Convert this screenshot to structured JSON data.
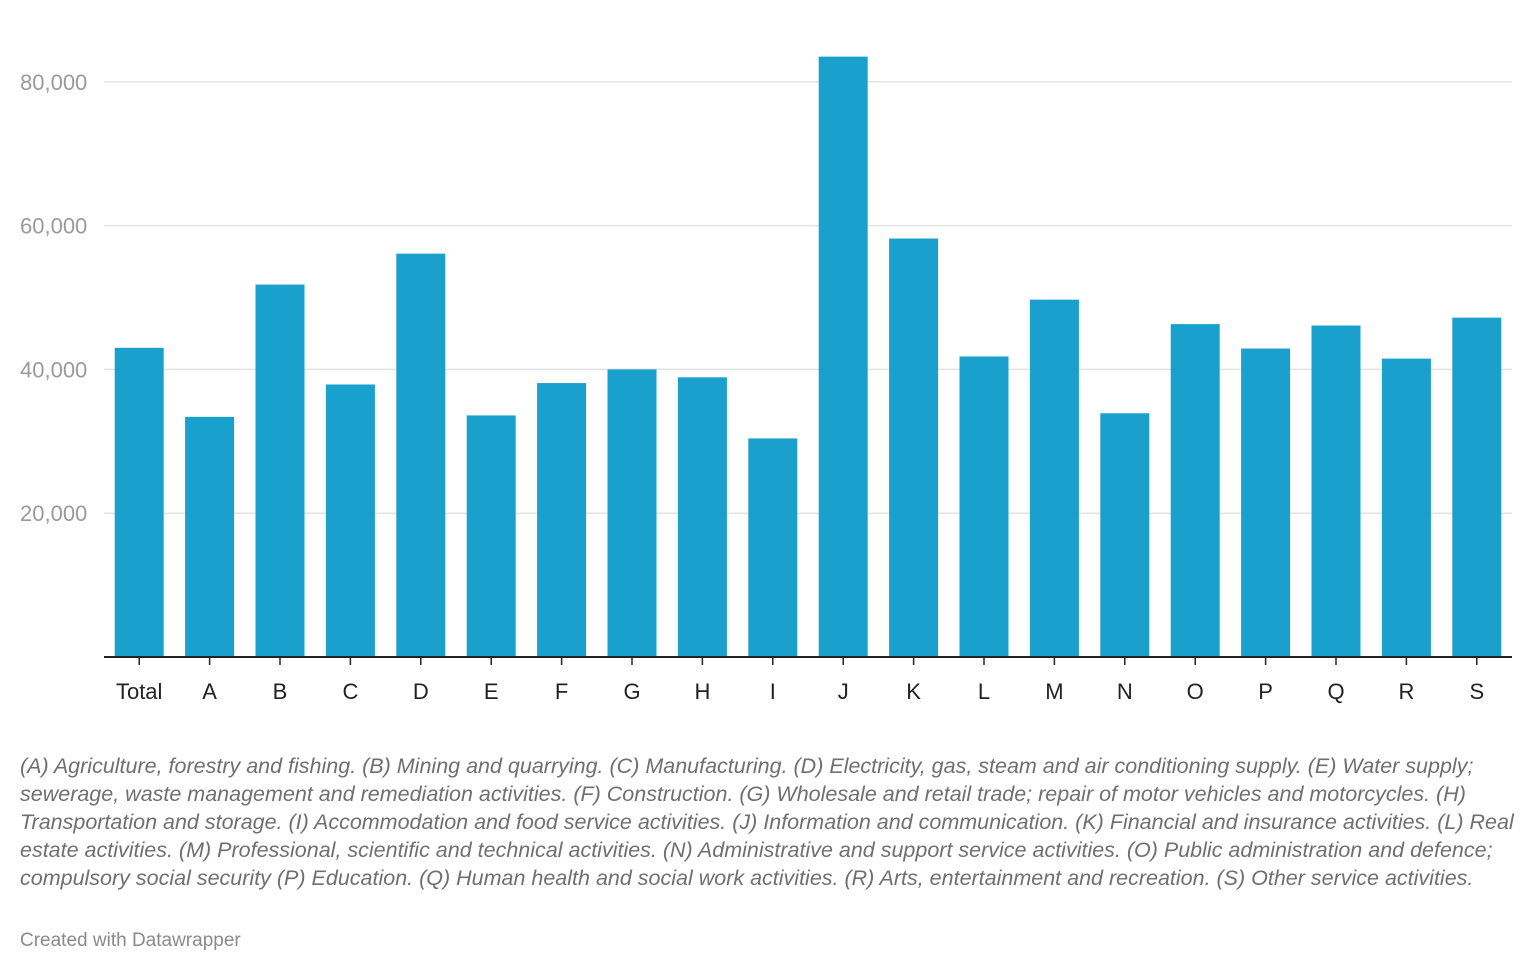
{
  "chart_data": {
    "type": "bar",
    "title": "",
    "xlabel": "",
    "ylabel": "",
    "ylim": [
      0,
      85000
    ],
    "yticks": [
      20000,
      40000,
      60000,
      80000
    ],
    "ytick_labels": [
      "20,000",
      "40,000",
      "60,000",
      "80,000"
    ],
    "grid": true,
    "categories": [
      "Total",
      "A",
      "B",
      "C",
      "D",
      "E",
      "F",
      "G",
      "H",
      "I",
      "J",
      "K",
      "L",
      "M",
      "N",
      "O",
      "P",
      "Q",
      "R",
      "S"
    ],
    "values": [
      43000,
      33400,
      51800,
      37900,
      56100,
      33600,
      38100,
      40000,
      38900,
      30400,
      83500,
      58200,
      41800,
      49700,
      33900,
      46300,
      42900,
      46100,
      41500,
      47200
    ],
    "bar_color": "#1aa0cc"
  },
  "notes": "(A) Agriculture, forestry and fishing. (B) Mining and quarrying. (C) Manufacturing. (D) Electricity, gas, steam and air conditioning supply. (E) Water supply; sewerage, waste management and remediation activities. (F) Construction. (G) Wholesale and retail trade; repair of motor vehicles and motorcycles. (H) Transportation and storage. (I) Accommodation and food service activities. (J) Information and communication. (K) Financial and insurance activities. (L) Real estate activities. (M) Professional, scientific and technical activities. (N) Administrative and support service activities. (O) Public administration and defence; compulsory social security (P) Education. (Q) Human health and social work activities. (R) Arts, entertainment and recreation. (S) Other service activities.",
  "credit": "Created with Datawrapper"
}
